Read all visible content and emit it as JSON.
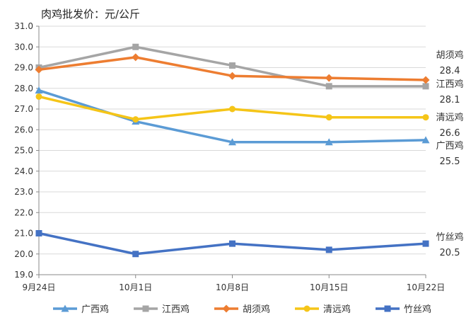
{
  "chart_data": {
    "type": "line",
    "title": "肉鸡批发价：元/公斤",
    "categories": [
      "9月24日",
      "10月1日",
      "10月8日",
      "10月15日",
      "10月22日"
    ],
    "ylim": [
      19.0,
      31.0
    ],
    "yticks": [
      "19.0",
      "20.0",
      "21.0",
      "22.0",
      "23.0",
      "24.0",
      "25.0",
      "26.0",
      "27.0",
      "28.0",
      "29.0",
      "30.0",
      "31.0"
    ],
    "grid": "horizontal",
    "legend": "bottom",
    "series": [
      {
        "name": "广西鸡",
        "color": "#5b9bd5",
        "marker": "triangle",
        "values": [
          27.9,
          26.4,
          25.4,
          25.4,
          25.5
        ],
        "end_label": "广西鸡",
        "end_value": "25.5"
      },
      {
        "name": "江西鸡",
        "color": "#a5a5a5",
        "marker": "square",
        "values": [
          29.0,
          30.0,
          29.1,
          28.1,
          28.1
        ],
        "end_label": "江西鸡",
        "end_value": "28.1"
      },
      {
        "name": "胡须鸡",
        "color": "#ed7d31",
        "marker": "diamond",
        "values": [
          28.9,
          29.5,
          28.6,
          28.5,
          28.4
        ],
        "end_label": "胡须鸡",
        "end_value": "28.4"
      },
      {
        "name": "清远鸡",
        "color": "#f5c518",
        "marker": "circle",
        "values": [
          27.6,
          26.5,
          27.0,
          26.6,
          26.6
        ],
        "end_label": "清远鸡",
        "end_value": "26.6"
      },
      {
        "name": "竹丝鸡",
        "color": "#4472c4",
        "marker": "square",
        "values": [
          21.0,
          20.0,
          20.5,
          20.2,
          20.5
        ],
        "end_label": "竹丝鸡",
        "end_value": "20.5"
      }
    ]
  }
}
